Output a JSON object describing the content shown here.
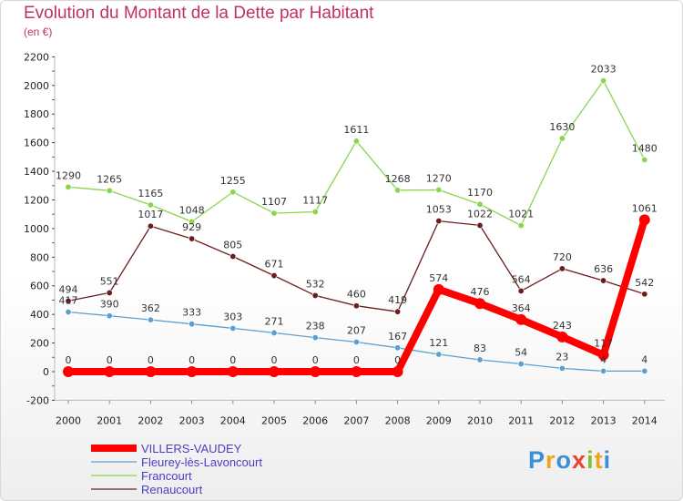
{
  "title": "Evolution du Montant de la Dette par Habitant",
  "subtitle": "(en €)",
  "logo_text": "Proxiti",
  "chart_data": {
    "type": "line",
    "x": [
      2000,
      2001,
      2002,
      2003,
      2004,
      2005,
      2006,
      2007,
      2008,
      2009,
      2010,
      2011,
      2012,
      2013,
      2014
    ],
    "ylim": [
      -200,
      2200
    ],
    "y_ticks": [
      -200,
      0,
      200,
      400,
      600,
      800,
      1000,
      1200,
      1400,
      1600,
      1800,
      2000,
      2200
    ],
    "grid": false,
    "legend_position": "bottom-left",
    "series": [
      {
        "name": "Renaucourt",
        "color": "#6b1d1d",
        "values": [
          494,
          551,
          1017,
          929,
          805,
          671,
          532,
          460,
          419,
          1053,
          1022,
          564,
          720,
          636,
          542
        ]
      },
      {
        "name": "Francourt",
        "color": "#88d64a",
        "values": [
          1290,
          1265,
          1165,
          1048,
          1255,
          1107,
          1117,
          1611,
          1268,
          1270,
          1170,
          1021,
          1630,
          2033,
          1480
        ]
      },
      {
        "name": "Fleurey-lès-Lavoncourt",
        "color": "#5b9fd1",
        "values": [
          417,
          390,
          362,
          333,
          303,
          271,
          238,
          207,
          167,
          121,
          83,
          54,
          23,
          4,
          4
        ]
      },
      {
        "name": "VILLERS-VAUDEY",
        "color": "#ff0000",
        "values": [
          0,
          0,
          0,
          0,
          0,
          0,
          0,
          0,
          0,
          574,
          476,
          364,
          243,
          117,
          1061
        ]
      }
    ],
    "legend_order": [
      "VILLERS-VAUDEY",
      "Fleurey-lès-Lavoncourt",
      "Francourt",
      "Renaucourt"
    ]
  }
}
